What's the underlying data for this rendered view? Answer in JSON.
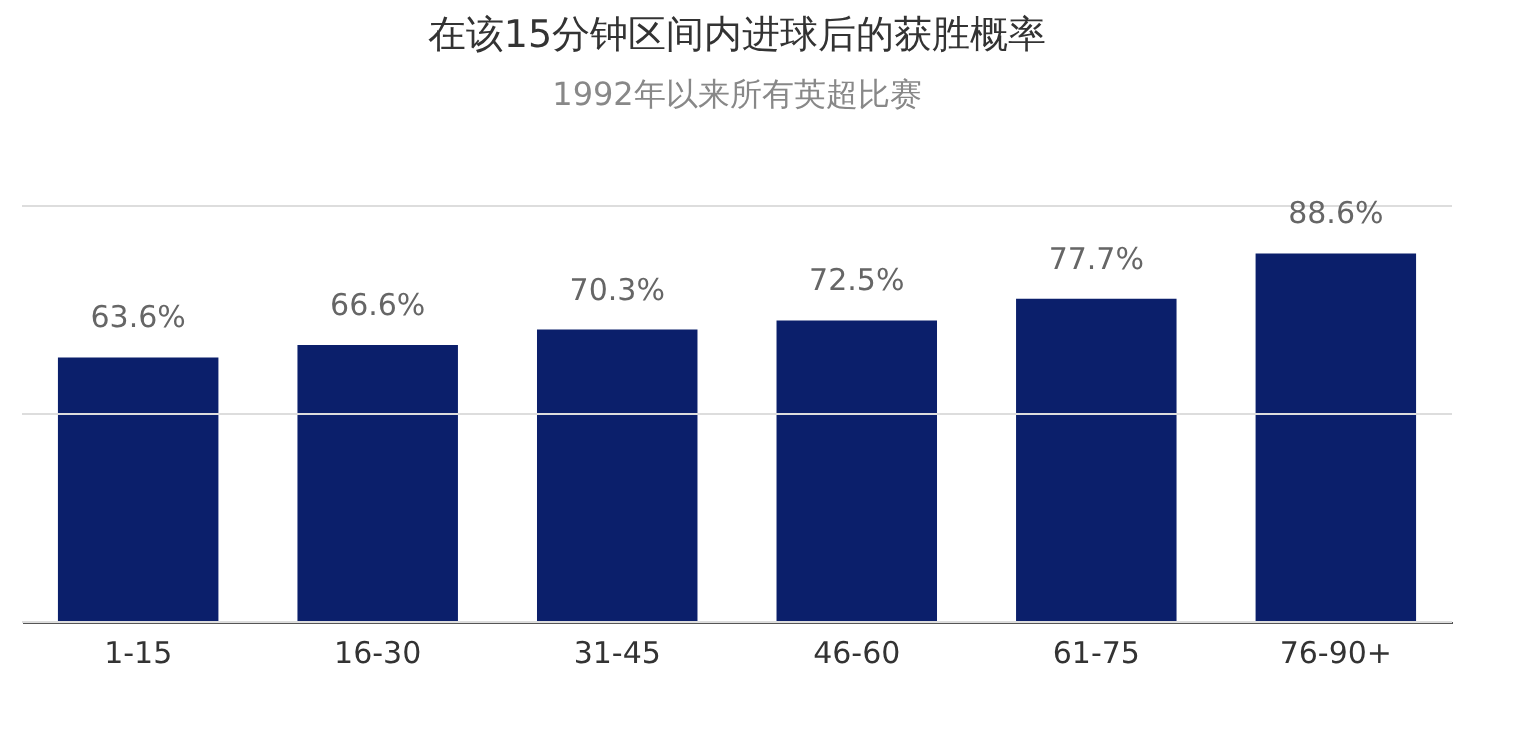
{
  "chart_data": {
    "type": "bar",
    "title": "在该15分钟区间内进球后的获胜概率",
    "subtitle": "1992年以来所有英超比赛",
    "categories": [
      "1-15",
      "16-30",
      "31-45",
      "46-60",
      "61-75",
      "76-90+"
    ],
    "values": [
      63.6,
      66.6,
      70.3,
      72.5,
      77.7,
      88.6
    ],
    "value_labels": [
      "63.6%",
      "66.6%",
      "70.3%",
      "72.5%",
      "77.7%",
      "88.6%"
    ],
    "color": "#0b1f6b",
    "ylim": [
      0,
      100
    ],
    "yticks": [
      {
        "value": 0,
        "label": null
      },
      {
        "value": 50,
        "label": null
      },
      {
        "value": 100,
        "label": null
      }
    ],
    "grid": "y",
    "tick_labels": "x"
  }
}
